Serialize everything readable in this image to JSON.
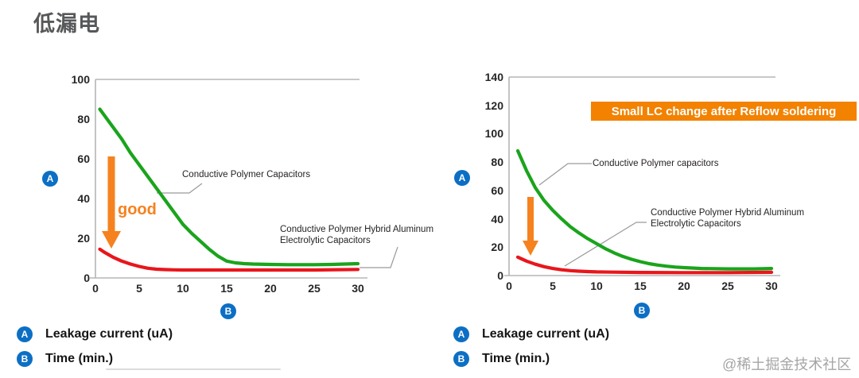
{
  "page": {
    "title": "低漏电",
    "watermark": "@稀土掘金技术社区"
  },
  "colors": {
    "polymer_green": "#1aa41c",
    "hybrid_red": "#e8161c",
    "arrow_orange": "#f5821f",
    "banner_orange": "#f28200",
    "badge_blue": "#0c6fc4",
    "axis_gray": "#b5b5b5"
  },
  "legend": {
    "a_badge": "A",
    "b_badge": "B",
    "a_label": "Leakage current (uA)",
    "b_label": "Time (min.)"
  },
  "banner": {
    "text": "Small LC change after Reflow soldering"
  },
  "annotations": {
    "good_label": "good"
  },
  "chart_data": [
    {
      "type": "line",
      "title": "Leakage current vs time (before reflow)",
      "xlabel": "Time (min.)",
      "ylabel": "Leakage current (uA)",
      "xlim": [
        0,
        30
      ],
      "ylim": [
        0,
        100
      ],
      "xticks": [
        0,
        5,
        10,
        15,
        20,
        25,
        30
      ],
      "yticks": [
        0,
        20,
        40,
        60,
        80,
        100
      ],
      "grid": false,
      "legend_position": "inline-labels",
      "series": [
        {
          "key": "hybrid",
          "name": "Conductive Polymer Hybrid Aluminum Electrolytic Capacitors",
          "color": "#e8161c",
          "points": [
            [
              0.5,
              14.5
            ],
            [
              1,
              13
            ],
            [
              2,
              10.5
            ],
            [
              3,
              8.5
            ],
            [
              4,
              7
            ],
            [
              5,
              5.8
            ],
            [
              6,
              4.9
            ],
            [
              7,
              4.4
            ],
            [
              8,
              4.2
            ],
            [
              9,
              4.1
            ],
            [
              10,
              4
            ],
            [
              12,
              4
            ],
            [
              15,
              4
            ],
            [
              20,
              4
            ],
            [
              25,
              4
            ],
            [
              30,
              4.3
            ]
          ]
        },
        {
          "key": "polymer",
          "name": "Conductive Polymer Capacitors",
          "color": "#1aa41c",
          "points": [
            [
              0.5,
              85
            ],
            [
              1,
              82
            ],
            [
              2,
              76
            ],
            [
              3,
              70
            ],
            [
              4,
              63
            ],
            [
              5,
              57
            ],
            [
              6,
              51
            ],
            [
              7,
              45
            ],
            [
              8,
              39
            ],
            [
              9,
              33
            ],
            [
              10,
              27
            ],
            [
              11,
              22.5
            ],
            [
              12,
              18.5
            ],
            [
              13,
              14.5
            ],
            [
              14,
              11
            ],
            [
              15,
              8.5
            ],
            [
              16,
              7.6
            ],
            [
              17,
              7.2
            ],
            [
              18,
              7
            ],
            [
              20,
              6.8
            ],
            [
              22,
              6.7
            ],
            [
              25,
              6.7
            ],
            [
              27,
              6.8
            ],
            [
              30,
              7.2
            ]
          ]
        }
      ],
      "labels": [
        {
          "lines": [
            "Conductive Polymer Capacitors"
          ]
        },
        {
          "lines": [
            "Conductive Polymer Hybrid Aluminum",
            "Electrolytic Capacitors"
          ]
        }
      ]
    },
    {
      "type": "line",
      "title": "Leakage current vs time (after reflow soldering)",
      "xlabel": "Time (min.)",
      "ylabel": "Leakage current (uA)",
      "xlim": [
        0,
        30
      ],
      "ylim": [
        0,
        140
      ],
      "xticks": [
        0,
        5,
        10,
        15,
        20,
        25,
        30
      ],
      "yticks": [
        0,
        20,
        40,
        60,
        80,
        100,
        120,
        140
      ],
      "grid": false,
      "legend_position": "inline-labels",
      "banner": "Small LC change after Reflow soldering",
      "series": [
        {
          "key": "hybrid",
          "name": "Conductive Polymer Hybrid Aluminum Electrolytic Capacitors",
          "color": "#e8161c",
          "points": [
            [
              1,
              13
            ],
            [
              2,
              10.2
            ],
            [
              3,
              8
            ],
            [
              4,
              6.3
            ],
            [
              5,
              5
            ],
            [
              6,
              4.1
            ],
            [
              7,
              3.5
            ],
            [
              8,
              3.1
            ],
            [
              9,
              2.8
            ],
            [
              10,
              2.6
            ],
            [
              12,
              2.4
            ],
            [
              15,
              2.2
            ],
            [
              20,
              2.1
            ],
            [
              25,
              2.1
            ],
            [
              30,
              2.3
            ]
          ]
        },
        {
          "key": "polymer",
          "name": "Conductive Polymer capacitors",
          "color": "#1aa41c",
          "points": [
            [
              1,
              88
            ],
            [
              2,
              74
            ],
            [
              3,
              62
            ],
            [
              4,
              53
            ],
            [
              5,
              46
            ],
            [
              6,
              40
            ],
            [
              7,
              34.5
            ],
            [
              8,
              30
            ],
            [
              9,
              26
            ],
            [
              10,
              22.5
            ],
            [
              11,
              19
            ],
            [
              12,
              16
            ],
            [
              13,
              13.5
            ],
            [
              14,
              11.5
            ],
            [
              15,
              9.8
            ],
            [
              16,
              8.4
            ],
            [
              17,
              7.4
            ],
            [
              18,
              6.6
            ],
            [
              19,
              6
            ],
            [
              20,
              5.6
            ],
            [
              22,
              5
            ],
            [
              25,
              4.7
            ],
            [
              28,
              4.7
            ],
            [
              30,
              5
            ]
          ]
        }
      ],
      "labels": [
        {
          "lines": [
            "Conductive Polymer capacitors"
          ]
        },
        {
          "lines": [
            "Conductive Polymer Hybrid Aluminum",
            "Electrolytic Capacitors"
          ]
        }
      ]
    }
  ]
}
